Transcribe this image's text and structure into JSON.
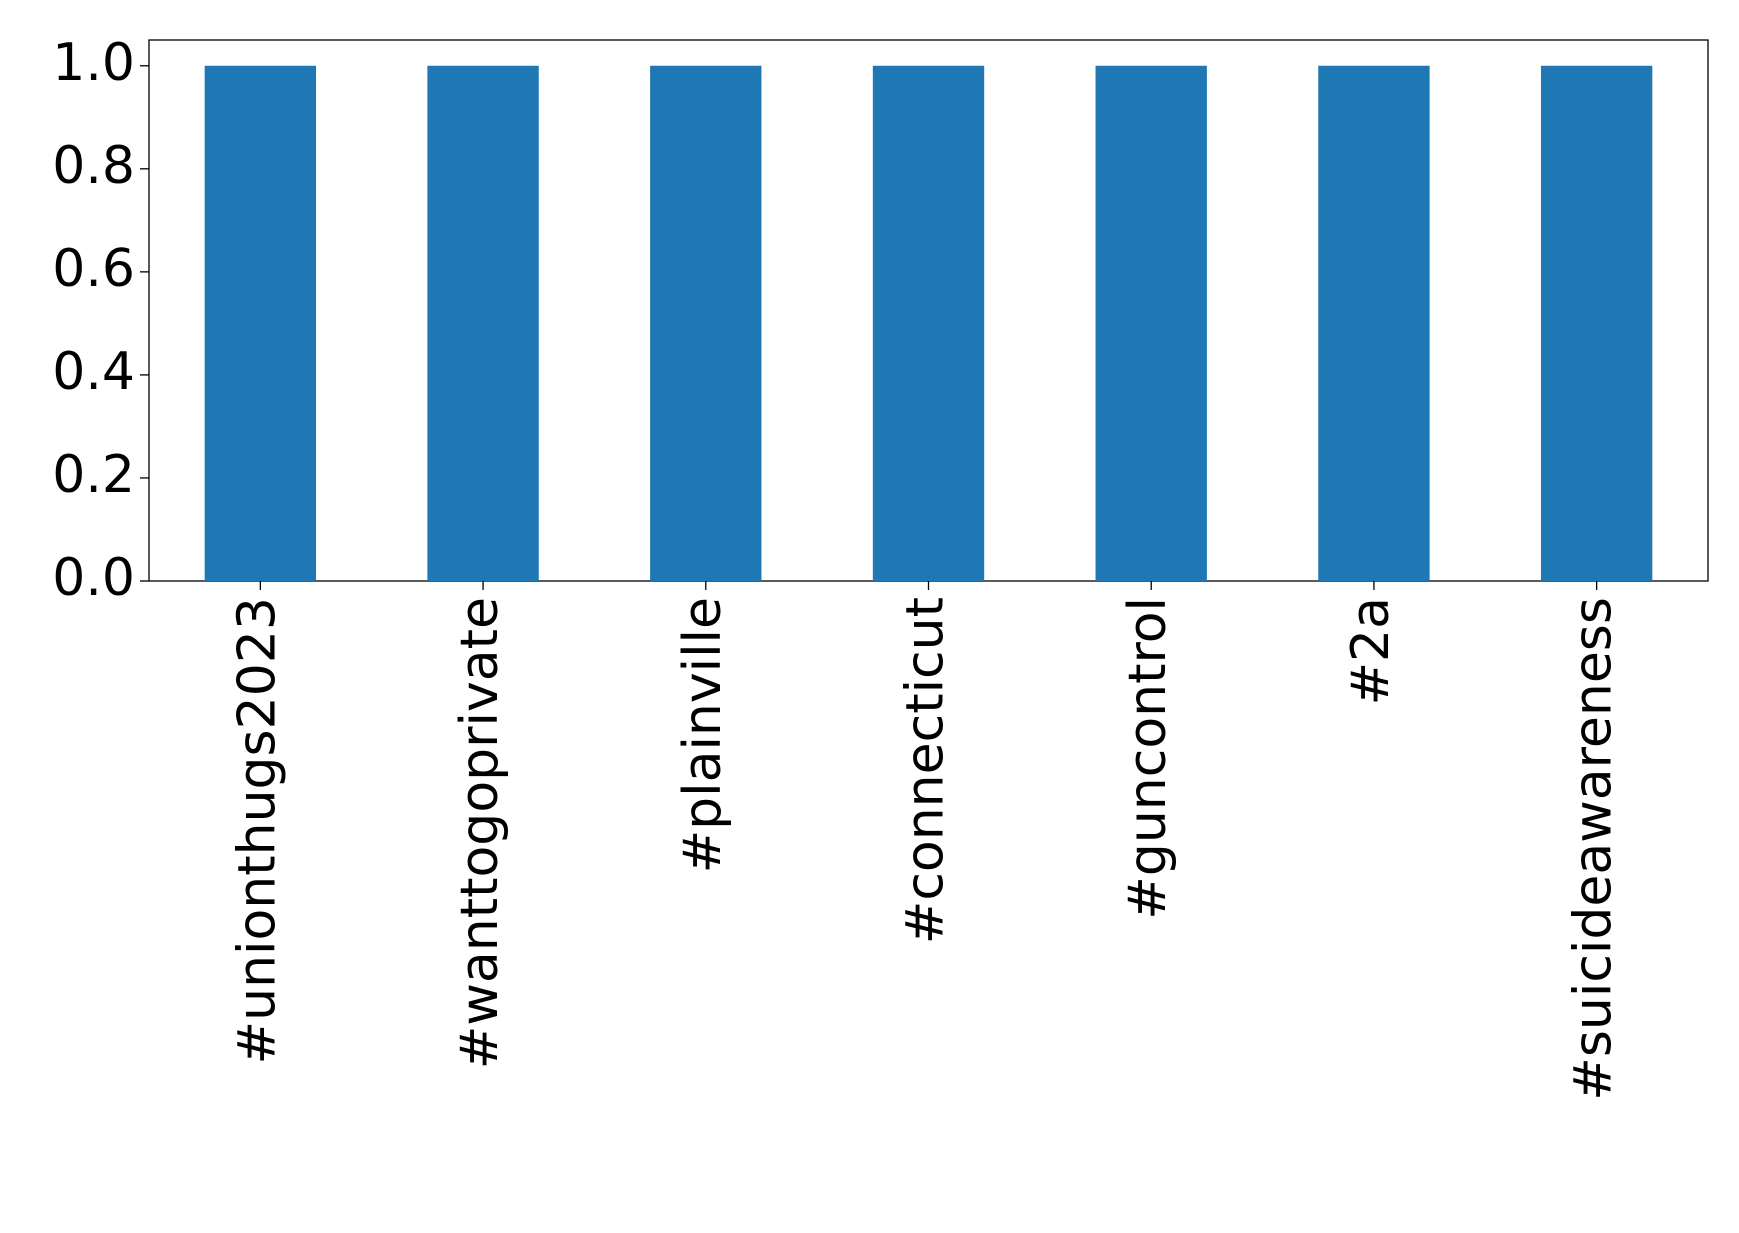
{
  "chart_data": {
    "type": "bar",
    "categories": [
      "#unionthugs2023",
      "#wanttogoprivate",
      "#plainville",
      "#connecticut",
      "#guncontrol",
      "#2a",
      "#suicideawareness"
    ],
    "values": [
      1,
      1,
      1,
      1,
      1,
      1,
      1
    ],
    "color": "#1f77b4",
    "ylim": [
      0,
      1.05
    ],
    "yticks": [
      {
        "value": 0,
        "label": "0.0"
      },
      0.2,
      0.4,
      0.6,
      0.8,
      {
        "value": 1,
        "label": "1.0"
      }
    ],
    "grid": false
  }
}
